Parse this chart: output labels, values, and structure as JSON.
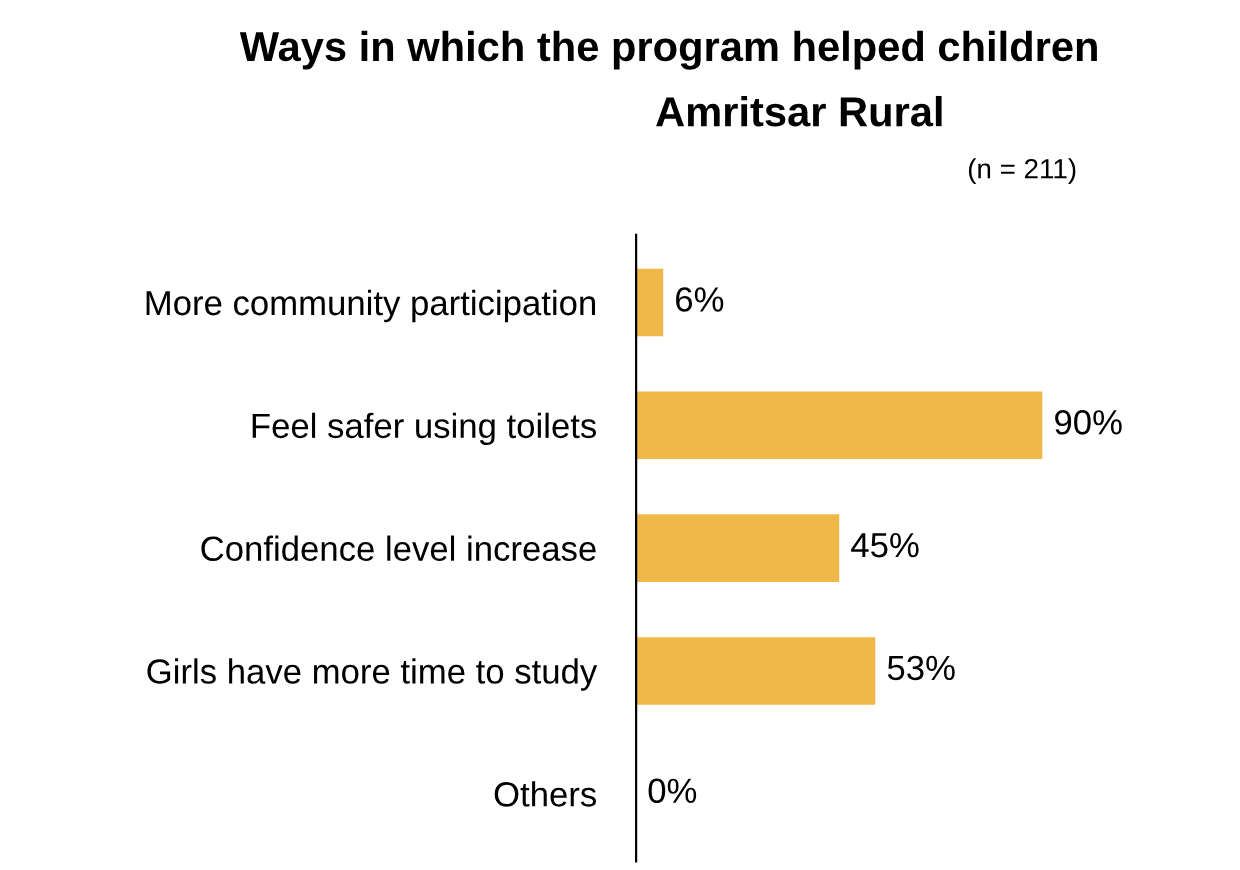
{
  "chart_data": {
    "type": "bar",
    "orientation": "horizontal",
    "title": "Ways in which the program helped children",
    "subtitle": "Amritsar Rural",
    "annotations": [
      "(n = 211)"
    ],
    "categories": [
      "More community participation",
      "Feel safer using toilets",
      "Confidence level increase",
      "Girls have more time to study",
      "Others"
    ],
    "values": [
      6,
      90,
      45,
      53,
      0
    ],
    "color": "#f0b849",
    "value_labels": [
      "6%",
      "90%",
      "45%",
      "53%",
      "0%"
    ],
    "grid": false,
    "legend": false
  }
}
